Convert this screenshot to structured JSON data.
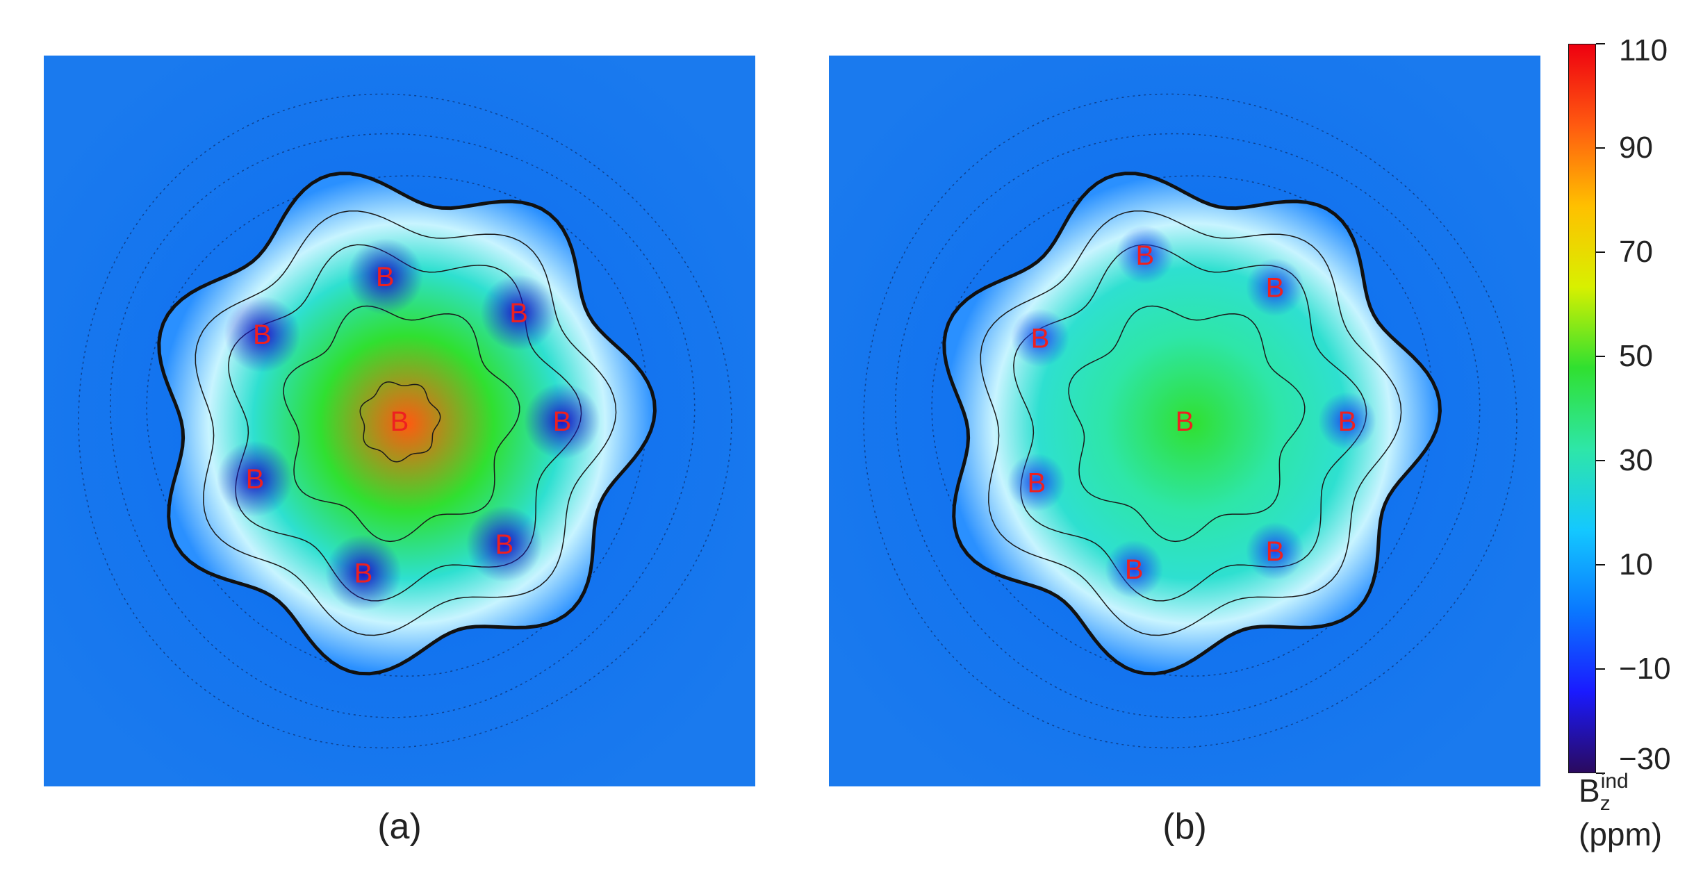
{
  "chart_data": [
    {
      "type": "heatmap",
      "panel_label": "(a)",
      "center_value": 95,
      "ring_value": 45,
      "atoms": [
        {
          "label": "B",
          "x": 0.0,
          "y": 0.0
        },
        {
          "label": "B",
          "x": -0.38,
          "y": -0.24
        },
        {
          "label": "B",
          "x": -0.04,
          "y": -0.4
        },
        {
          "label": "B",
          "x": 0.33,
          "y": -0.3
        },
        {
          "label": "B",
          "x": 0.45,
          "y": 0.0
        },
        {
          "label": "B",
          "x": 0.29,
          "y": 0.34
        },
        {
          "label": "B",
          "x": -0.1,
          "y": 0.42
        },
        {
          "label": "B",
          "x": -0.4,
          "y": 0.16
        }
      ]
    },
    {
      "type": "heatmap",
      "panel_label": "(b)",
      "center_value": 50,
      "ring_value": 25,
      "atoms": [
        {
          "label": "B",
          "x": 0.0,
          "y": 0.0
        },
        {
          "label": "B",
          "x": -0.4,
          "y": -0.23
        },
        {
          "label": "B",
          "x": -0.11,
          "y": -0.46
        },
        {
          "label": "B",
          "x": 0.25,
          "y": -0.37
        },
        {
          "label": "B",
          "x": 0.45,
          "y": 0.0
        },
        {
          "label": "B",
          "x": 0.25,
          "y": 0.36
        },
        {
          "label": "B",
          "x": -0.14,
          "y": 0.41
        },
        {
          "label": "B",
          "x": -0.41,
          "y": 0.17
        }
      ]
    }
  ],
  "colorbar": {
    "min": -30,
    "max": 110,
    "ticks": [
      "110",
      "90",
      "70",
      "50",
      "30",
      "10",
      "−10",
      "−30"
    ],
    "tick_values": [
      110,
      90,
      70,
      50,
      30,
      10,
      -10,
      -30
    ],
    "title_main": "B",
    "title_sub": "z",
    "title_sup": "ind",
    "units": "(ppm)",
    "colors": [
      "#2a0a5e",
      "#1a1aff",
      "#0a78ff",
      "#14c8ff",
      "#2ee6a8",
      "#30e030",
      "#d8f000",
      "#ffc000",
      "#ff5a10",
      "#ee0010"
    ]
  }
}
